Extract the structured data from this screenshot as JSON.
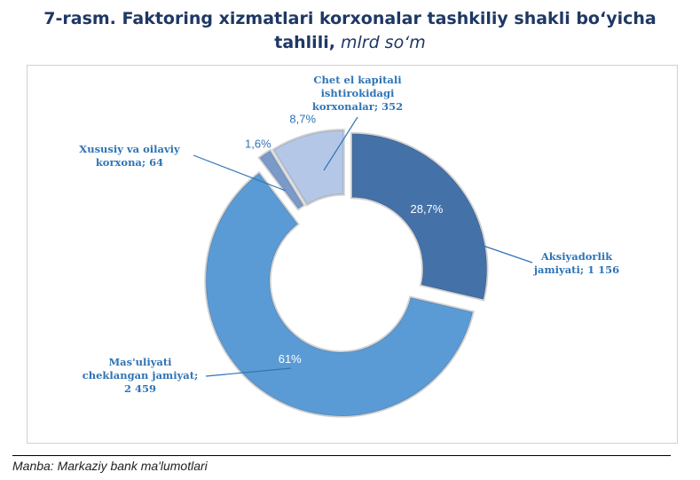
{
  "title": {
    "line1": "7-rasm. Faktoring xizmatlari korxonalar tashkiliy shakli boʻyicha",
    "line2_bold": "tahlili,",
    "line2_unit": "mlrd soʻm"
  },
  "source": "Manba: Markaziy bank ma'lumotlari",
  "chart_data": {
    "type": "pie",
    "variant": "donut",
    "title": "7-rasm. Faktoring xizmatlari korxonalar tashkiliy shakli boʻyicha tahlili, mlrd soʻm",
    "unit": "mlrd soʻm",
    "slices": [
      {
        "id": "aksiya",
        "label_lines": [
          "Aksiyadorlik",
          "jamiyati;  1 156"
        ],
        "name": "Aksiyadorlik jamiyati",
        "value": 1156,
        "percent_label": "28,7%",
        "color": "#4472a8",
        "pct_color": "#ffffff",
        "pct_pos": "inside"
      },
      {
        "id": "masuliyati",
        "label_lines": [
          "Mas'uliyati",
          "cheklangan jamiyat;",
          "2 459"
        ],
        "name": "Mas'uliyati cheklangan jamiyat",
        "value": 2459,
        "percent_label": "61%",
        "color": "#5b9bd5",
        "pct_color": "#ffffff",
        "pct_pos": "inside"
      },
      {
        "id": "xususiy",
        "label_lines": [
          "Xususiy va oilaviy",
          "korxona;  64"
        ],
        "name": "Xususiy va oilaviy korxona",
        "value": 64,
        "percent_label": "1,6%",
        "color": "#7a9bc9",
        "pct_color": "#2e74b5",
        "pct_pos": "outside"
      },
      {
        "id": "chetel",
        "label_lines": [
          "Chet el kapitali",
          "ishtirokidagi",
          "korxonalar;  352"
        ],
        "name": "Chet el kapitali ishtirokidagi korxonalar",
        "value": 352,
        "percent_label": "8,7%",
        "color": "#b4c7e7",
        "pct_color": "#2e74b5",
        "pct_pos": "outside"
      }
    ]
  }
}
